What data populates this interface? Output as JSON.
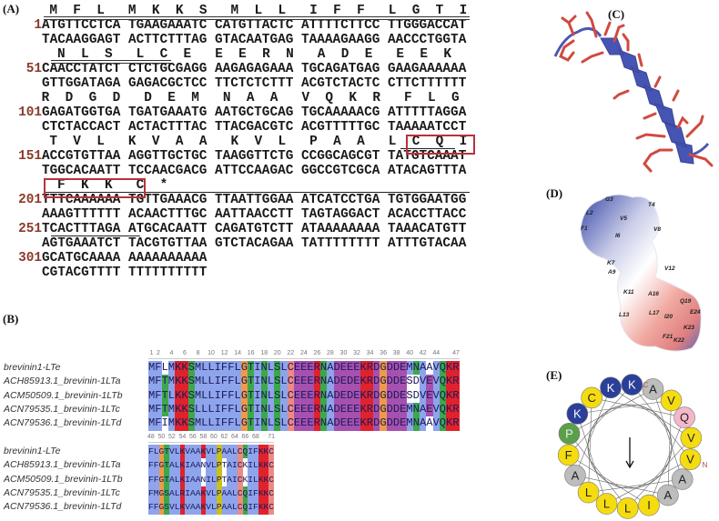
{
  "panels": {
    "a": "(A)",
    "b": "(B)",
    "c": "(C)",
    "d": "(D)",
    "e": "(E)"
  },
  "panel_a": {
    "protein": "MFLMKKSMLLIFFLGTINLSLCEEERNADEEEKRDGDDEMNAAVQKRFLGTVLKVAAKVLPAALCQIFKKC*",
    "lines": [
      {
        "num": "1",
        "top": "ATGTTCCTCA TGAAGAAATC CATGTTACTC ATTTTCTTCC TTGGGACCAT",
        "bottom": "TACAAGGAGT ACTTCTTTAG GTACAATGAG TAAAAGAAGG AACCCTGGTA"
      },
      {
        "num": "51",
        "top": "CAACCTATCT CTCTGCGAGG AAGAGAGAAA TGCAGATGAG GAAGAAAAAA",
        "bottom": "GTTGGATAGA GAGACGCTCC TTCTCTCTTT ACGTCTACTC CTTCTTTTTT"
      },
      {
        "num": "101",
        "top": "GAGATGGTGA TGATGAAATG AATGCTGCAG TGCAAAAACG ATTTTTAGGA",
        "bottom": "CTCTACCACT ACTACTTTAC TTACGACGTC ACGTTTTTGC TAAAAATCCT"
      },
      {
        "num": "151",
        "top": "ACCGTGTTAA AGGTTGCTGC TAAGGTTCTG CCGGCAGCGT TATGTCAAAT",
        "bottom": "TGGCACAATT TCCAACGACG ATTCCAAGAC GGCCGTCGCA ATACAGTTTA"
      },
      {
        "num": "201",
        "top": "TTTCAAAAAA TGTTGAAACG TTAATTGGAA ATCATCCTGA TGTGGAATGG",
        "bottom": "AAAGTTTTTT ACAACTTTGC AATTAACCTT TAGTAGGACT ACACCTTACC"
      },
      {
        "num": "251",
        "top": "TCACTTTAGA ATGCACAATT CAGATGTCTT ATAAAAAAAA TAAACATGTT",
        "bottom": "AGTGAAATCT TACGTGTTAA GTCTACAGAA TATTTTTTTT ATTTGTACAA"
      },
      {
        "num": "301",
        "top": "GCATGCAAAA AAAAAAAAAA",
        "bottom": "CGTACGTTTT TTTTTTTTTT"
      }
    ]
  },
  "panel_b": {
    "names": [
      "brevinin1-LTe",
      "ACH85913.1_brevinin-1LTa",
      "ACM50509.1_brevinin-1LTb",
      "ACN79535.1_brevinin-1LTc",
      "ACN79536.1_brevinin-1LTd"
    ],
    "block1": {
      "start": 1,
      "ticks": [
        "1",
        "2",
        "4",
        "6",
        "8",
        "10",
        "12",
        "14",
        "16",
        "18",
        "20",
        "22",
        "24",
        "26",
        "28",
        "30",
        "32",
        "34",
        "36",
        "38",
        "40",
        "42",
        "44",
        "47"
      ],
      "seqs": [
        "MFLMKKSMLLIFFLGTINLSLCEEERNADEEEKRDGDDEMNAAVQKR",
        "MFTMKKSMLLIFFLGTINLSLCEEERNADEDEKRDGDDESDVEVQKR",
        "MFTLKKSMLLIFFLGTINLSLCEEERNADEDEKRDGDDESDVEVQKR",
        "MFTMKKSLLLIFFLGTINLSLCEEERNADEEEKRDGDDEMNAEVQKR",
        "MFIMKKSMLLIFFLGTINLSLCEEERNADEEEKRDGDDEMNAAVQKR"
      ]
    },
    "block2": {
      "start": 48,
      "ticks": [
        "48",
        "50",
        "52",
        "54",
        "56",
        "58",
        "60",
        "62",
        "64",
        "66",
        "68",
        "71"
      ],
      "seqs": [
        "FLGTVLKVAAKVLPAALCQIFKKC",
        "FFGTALKIAANVLPTAICKILKKC",
        "FFGTALKIAANILPTAICKILKKC",
        "FMGSALRIAAKVLPAALCQIFKKC",
        "FFGSVLKVAAKVLPAALCQIFKKC"
      ]
    },
    "colors": {
      "hydrophobic": "#8ea4ec",
      "basic": "#e0222c",
      "acidic": "#a650b0",
      "polar": "#3ca84a",
      "glycine": "#ef9a4a",
      "proline": "#c8c020",
      "cysteine": "#ec8a84"
    }
  },
  "panel_d": {
    "labels": [
      "G3",
      "T4",
      "L2",
      "V5",
      "F1",
      "I6",
      "V8",
      "K7",
      "A9",
      "V12",
      "K11",
      "A16",
      "Q19",
      "L13",
      "L17",
      "I20",
      "E24",
      "K23",
      "F21",
      "K22"
    ]
  },
  "panel_e": {
    "residues": [
      "K",
      "A",
      "V",
      "Q",
      "V",
      "V",
      "A",
      "A",
      "I",
      "L",
      "L",
      "L",
      "A",
      "F",
      "P",
      "K",
      "C",
      "K"
    ],
    "n_label": "N",
    "c_label": "C",
    "colors": {
      "K": "#2a3f9a",
      "A": "#bdbdbd",
      "V": "#f5dc10",
      "Q": "#f4b8c8",
      "I": "#f5dc10",
      "L": "#f5dc10",
      "F": "#f5dc10",
      "P": "#5aa04a",
      "C": "#f5dc10"
    }
  }
}
